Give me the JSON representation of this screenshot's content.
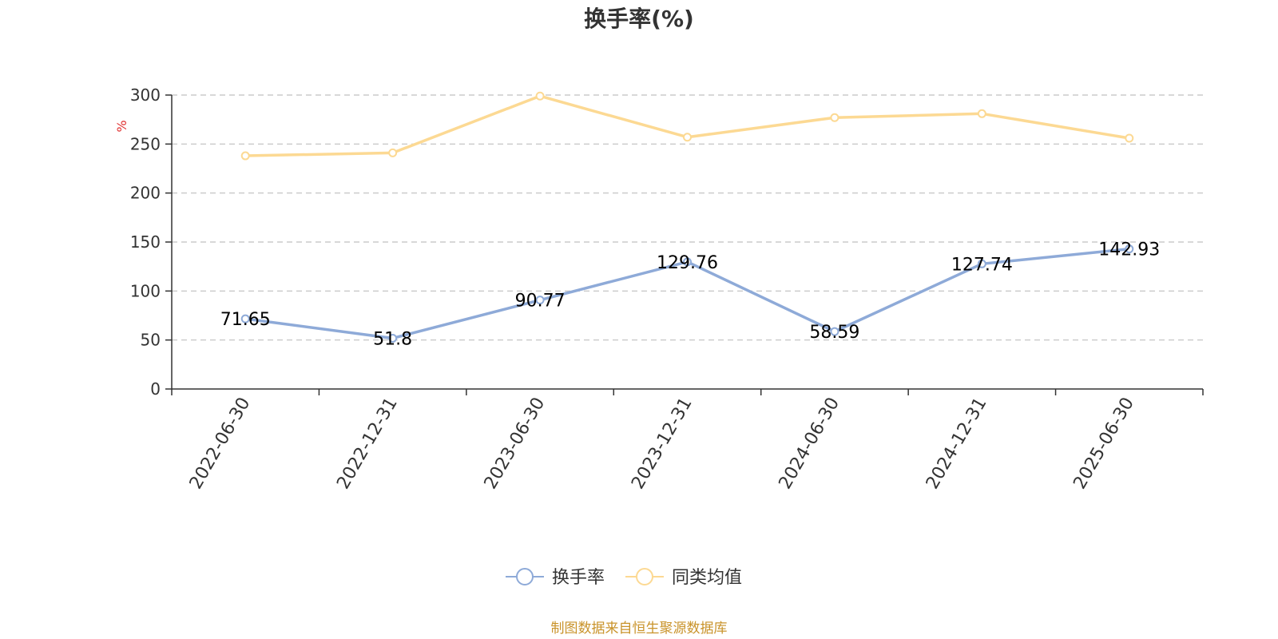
{
  "chart_data": {
    "type": "line",
    "title": "换手率(%)",
    "ylabel": "%",
    "xlabel": "",
    "ylim": [
      0,
      300
    ],
    "yticks": [
      0,
      50,
      100,
      150,
      200,
      250,
      300
    ],
    "categories": [
      "2022-06-30",
      "2022-12-31",
      "2023-06-30",
      "2023-12-31",
      "2024-06-30",
      "2024-12-31",
      "2025-06-30"
    ],
    "series": [
      {
        "name": "换手率",
        "color": "#8eaad8",
        "values": [
          71.65,
          51.8,
          90.77,
          129.76,
          58.59,
          127.74,
          142.93
        ],
        "labels": [
          "71.65",
          "51.8",
          "90.77",
          "129.76",
          "58.59",
          "127.74",
          "142.93"
        ]
      },
      {
        "name": "同类均值",
        "color": "#fcd993",
        "values": [
          238,
          241,
          299,
          257,
          277,
          281,
          256
        ]
      }
    ],
    "grid": true,
    "legend_position": "bottom-center",
    "source": "制图数据来自恒生聚源数据库",
    "colors": {
      "axis": "#333333",
      "grid": "#cccccc",
      "unit": "#e03131",
      "source": "#c9932a"
    }
  }
}
